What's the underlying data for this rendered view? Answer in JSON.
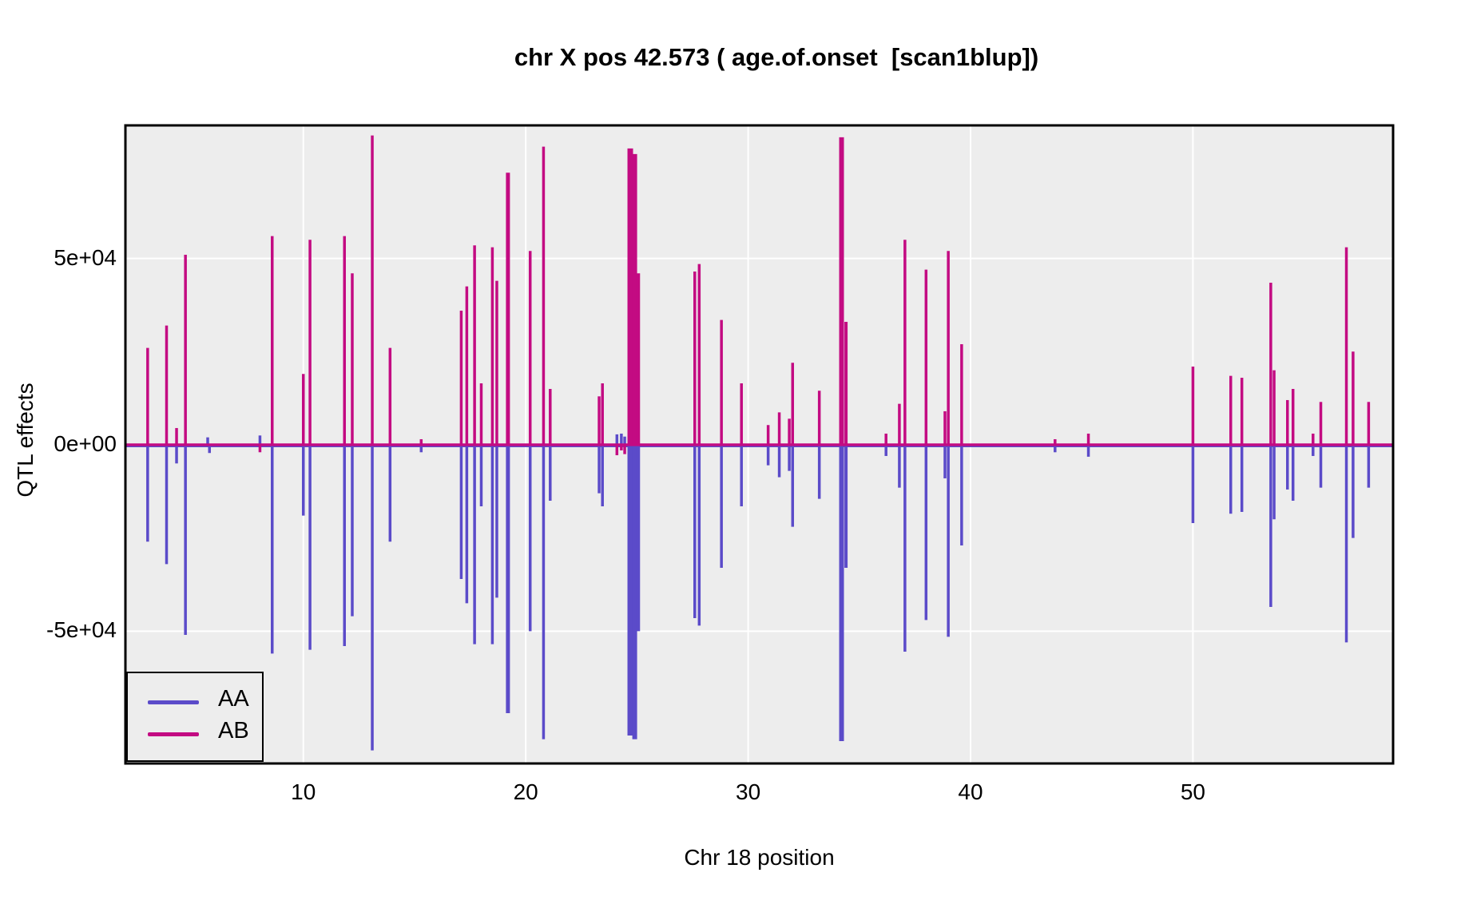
{
  "chart_data": {
    "type": "line",
    "title": "chr X pos 42.573 ( age.of.onset  [scan1blup])",
    "xlabel": "Chr 18 position",
    "ylabel": "QTL effects",
    "xlim": [
      2.0,
      59.0
    ],
    "ylim": [
      -85500,
      85700
    ],
    "grid": "major-white-on-gray",
    "legend_position": "bottom-left-inside",
    "x_ticks": [
      10,
      20,
      30,
      40,
      50
    ],
    "y_ticks": [
      {
        "value": 50000,
        "label": "5e+04"
      },
      {
        "value": 0,
        "label": "0e+00"
      },
      {
        "value": -50000,
        "label": "-5e+04"
      }
    ],
    "colors": {
      "aa": "#5B4BC9",
      "ab": "#C30B82",
      "panel_bg": "#EDEDED",
      "gridline": "#FFFFFF",
      "border": "#000000"
    },
    "series": [
      {
        "name": "AA",
        "color": "#5B4BC9"
      },
      {
        "name": "AB",
        "color": "#C30B82"
      }
    ],
    "spikes": [
      {
        "x": 3.0,
        "aa": -26000,
        "ab": 26000
      },
      {
        "x": 3.85,
        "aa": -32000,
        "ab": 32000
      },
      {
        "x": 4.3,
        "aa": -5000,
        "ab": 4500
      },
      {
        "x": 4.7,
        "aa": -51000,
        "ab": 51000
      },
      {
        "x": 5.7,
        "aa": 2000,
        "ab": 0
      },
      {
        "x": 5.78,
        "aa": -2200,
        "ab": 0
      },
      {
        "x": 8.05,
        "aa": 2500,
        "ab": -2000
      },
      {
        "x": 8.6,
        "aa": -56000,
        "ab": 56000
      },
      {
        "x": 10.0,
        "aa": -19000,
        "ab": 19000
      },
      {
        "x": 10.3,
        "aa": -55000,
        "ab": 55000
      },
      {
        "x": 11.85,
        "aa": -54000,
        "ab": 56000
      },
      {
        "x": 12.2,
        "aa": -46000,
        "ab": 46000
      },
      {
        "x": 13.1,
        "aa": -82000,
        "ab": 83000
      },
      {
        "x": 13.9,
        "aa": -26000,
        "ab": 26000
      },
      {
        "x": 15.3,
        "aa": -2000,
        "ab": 1500
      },
      {
        "x": 17.1,
        "aa": -36000,
        "ab": 36000
      },
      {
        "x": 17.35,
        "aa": -42500,
        "ab": 42500
      },
      {
        "x": 17.7,
        "aa": -53500,
        "ab": 53500
      },
      {
        "x": 18.0,
        "aa": -16500,
        "ab": 16500
      },
      {
        "x": 18.5,
        "aa": -53500,
        "ab": 53000
      },
      {
        "x": 18.7,
        "aa": -41000,
        "ab": 44000
      },
      {
        "x": 19.2,
        "aa": -72000,
        "ab": 73000,
        "w": 5
      },
      {
        "x": 20.2,
        "aa": -50000,
        "ab": 52000
      },
      {
        "x": 20.8,
        "aa": -79000,
        "ab": 80000
      },
      {
        "x": 21.1,
        "aa": -15000,
        "ab": 15000
      },
      {
        "x": 23.3,
        "aa": -13000,
        "ab": 13000
      },
      {
        "x": 23.45,
        "aa": -16500,
        "ab": 16500
      },
      {
        "x": 24.1,
        "aa": 2800,
        "ab": -2800
      },
      {
        "x": 24.3,
        "aa": 3000,
        "ab": -1500
      },
      {
        "x": 24.45,
        "aa": 2200,
        "ab": -2500
      },
      {
        "x": 24.7,
        "aa": -78000,
        "ab": 79500,
        "w": 7
      },
      {
        "x": 24.9,
        "aa": -79000,
        "ab": 78000,
        "w": 6
      },
      {
        "x": 25.05,
        "aa": -50000,
        "ab": 46000,
        "w": 5
      },
      {
        "x": 27.6,
        "aa": -46500,
        "ab": 46500
      },
      {
        "x": 27.8,
        "aa": -48500,
        "ab": 48500
      },
      {
        "x": 28.8,
        "aa": -33000,
        "ab": 33500
      },
      {
        "x": 29.7,
        "aa": -16500,
        "ab": 16500
      },
      {
        "x": 30.9,
        "aa": -5500,
        "ab": 5300
      },
      {
        "x": 31.4,
        "aa": -8700,
        "ab": 8700
      },
      {
        "x": 31.85,
        "aa": -7000,
        "ab": 7000
      },
      {
        "x": 32.0,
        "aa": -22000,
        "ab": 22000
      },
      {
        "x": 33.2,
        "aa": -14500,
        "ab": 14500
      },
      {
        "x": 34.2,
        "aa": -79500,
        "ab": 82500,
        "w": 6
      },
      {
        "x": 34.4,
        "aa": -33000,
        "ab": 33000,
        "w": 4
      },
      {
        "x": 36.2,
        "aa": -3000,
        "ab": 3000
      },
      {
        "x": 36.8,
        "aa": -11500,
        "ab": 11000
      },
      {
        "x": 37.05,
        "aa": -55500,
        "ab": 55000
      },
      {
        "x": 38.0,
        "aa": -47000,
        "ab": 47000
      },
      {
        "x": 38.85,
        "aa": -9000,
        "ab": 9000
      },
      {
        "x": 39.0,
        "aa": -51500,
        "ab": 52000
      },
      {
        "x": 39.6,
        "aa": -27000,
        "ab": 27000
      },
      {
        "x": 43.8,
        "aa": -2000,
        "ab": 1500
      },
      {
        "x": 45.3,
        "aa": -3200,
        "ab": 3000
      },
      {
        "x": 50.0,
        "aa": -21000,
        "ab": 21000
      },
      {
        "x": 51.7,
        "aa": -18500,
        "ab": 18500
      },
      {
        "x": 52.2,
        "aa": -18000,
        "ab": 18000
      },
      {
        "x": 53.5,
        "aa": -43500,
        "ab": 43500
      },
      {
        "x": 53.65,
        "aa": -20000,
        "ab": 20000
      },
      {
        "x": 54.25,
        "aa": -12000,
        "ab": 12000
      },
      {
        "x": 54.5,
        "aa": -15000,
        "ab": 15000
      },
      {
        "x": 55.4,
        "aa": -3000,
        "ab": 3000
      },
      {
        "x": 55.75,
        "aa": -11500,
        "ab": 11500
      },
      {
        "x": 56.9,
        "aa": -53000,
        "ab": 53000
      },
      {
        "x": 57.2,
        "aa": -25000,
        "ab": 25000
      },
      {
        "x": 57.9,
        "aa": -11500,
        "ab": 11500
      }
    ]
  }
}
